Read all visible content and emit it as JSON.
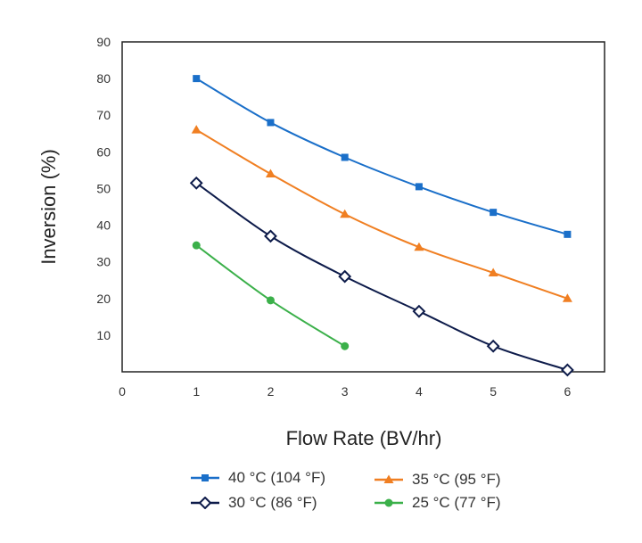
{
  "chart_data": {
    "type": "line",
    "xlabel": "Flow Rate (BV/hr)",
    "ylabel": "Inversion (%)",
    "xlim": [
      0,
      6.5
    ],
    "ylim": [
      0,
      90
    ],
    "x_ticks": [
      0,
      1,
      2,
      3,
      4,
      5,
      6
    ],
    "y_ticks": [
      10,
      20,
      30,
      40,
      50,
      60,
      70,
      80,
      90
    ],
    "grid": false,
    "legend_position": "bottom",
    "series": [
      {
        "name": "40 °C (104 °F)",
        "color": "#1a6fc9",
        "marker": "square",
        "x": [
          1,
          2,
          3,
          4,
          5,
          6
        ],
        "values": [
          80,
          68,
          58.5,
          50.5,
          43.5,
          37.5
        ]
      },
      {
        "name": "35 °C (95 °F)",
        "color": "#f07f22",
        "marker": "triangle",
        "x": [
          1,
          2,
          3,
          4,
          5,
          6
        ],
        "values": [
          66,
          54,
          43,
          34,
          27,
          20
        ]
      },
      {
        "name": "30 °C (86 °F)",
        "color": "#0d1b4a",
        "marker": "diamond-open",
        "x": [
          1,
          2,
          3,
          4,
          5,
          6
        ],
        "values": [
          51.5,
          37,
          26,
          16.5,
          7,
          0.5
        ]
      },
      {
        "name": "25 °C (77 °F)",
        "color": "#3bb04a",
        "marker": "circle",
        "x": [
          1,
          2,
          3
        ],
        "values": [
          34.5,
          19.5,
          7
        ]
      }
    ]
  }
}
